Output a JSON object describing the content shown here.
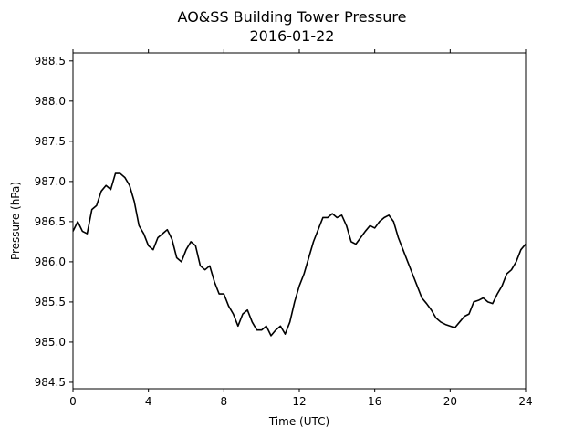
{
  "chart_data": {
    "type": "line",
    "title": "AO&SS Building Tower Pressure",
    "subtitle": "2016-01-22",
    "xlabel": "Time (UTC)",
    "ylabel": "Pressure (hPa)",
    "xlim": [
      0,
      24
    ],
    "ylim": [
      984.42,
      988.6
    ],
    "xticks": [
      0,
      4,
      8,
      12,
      16,
      20,
      24
    ],
    "yticks": [
      984.5,
      985.0,
      985.5,
      986.0,
      986.5,
      987.0,
      987.5,
      988.0,
      988.5
    ],
    "grid": false,
    "legend": "none",
    "line_color": "#000000",
    "series": [
      {
        "x": [
          0.0,
          0.25,
          0.5,
          0.75,
          1.0,
          1.25,
          1.5,
          1.75,
          2.0,
          2.25,
          2.5,
          2.75,
          3.0,
          3.25,
          3.5,
          3.75,
          4.0,
          4.25,
          4.5,
          4.75,
          5.0,
          5.25,
          5.5,
          5.75,
          6.0,
          6.25,
          6.5,
          6.75,
          7.0,
          7.25,
          7.5,
          7.75,
          8.0,
          8.25,
          8.5,
          8.75,
          9.0,
          9.25,
          9.5,
          9.75,
          10.0,
          10.25,
          10.5,
          10.75,
          11.0,
          11.25,
          11.5,
          11.75,
          12.0,
          12.25,
          12.5,
          12.75,
          13.0,
          13.25,
          13.5,
          13.75,
          14.0,
          14.25,
          14.5,
          14.75,
          15.0,
          15.25,
          15.5,
          15.75,
          16.0,
          16.25,
          16.5,
          16.75,
          17.0,
          17.25,
          17.5,
          17.75,
          18.0,
          18.25,
          18.5,
          18.75,
          19.0,
          19.25,
          19.5,
          19.75,
          20.0,
          20.25,
          20.5,
          20.75,
          21.0,
          21.25,
          21.5,
          21.75,
          22.0,
          22.25,
          22.5,
          22.75,
          23.0,
          23.25,
          23.5,
          23.75,
          24.0
        ],
        "values": [
          986.38,
          986.5,
          986.38,
          986.35,
          986.65,
          986.7,
          986.88,
          986.95,
          986.9,
          987.1,
          987.1,
          987.05,
          986.95,
          986.75,
          986.45,
          986.35,
          986.2,
          986.15,
          986.3,
          986.35,
          986.4,
          986.28,
          986.05,
          986.0,
          986.15,
          986.25,
          986.2,
          985.95,
          985.9,
          985.95,
          985.75,
          985.6,
          985.6,
          985.45,
          985.35,
          985.2,
          985.35,
          985.4,
          985.25,
          985.15,
          985.15,
          985.2,
          985.08,
          985.15,
          985.2,
          985.1,
          985.25,
          985.5,
          985.7,
          985.85,
          986.05,
          986.25,
          986.4,
          986.55,
          986.55,
          986.6,
          986.55,
          986.58,
          986.45,
          986.25,
          986.22,
          986.3,
          986.38,
          986.45,
          986.42,
          986.5,
          986.55,
          986.58,
          986.5,
          986.3,
          986.15,
          986.0,
          985.85,
          985.7,
          985.55,
          985.48,
          985.4,
          985.3,
          985.25,
          985.22,
          985.2,
          985.18,
          985.25,
          985.32,
          985.35,
          985.5,
          985.52,
          985.55,
          985.5,
          985.48,
          985.6,
          985.7,
          985.85,
          985.9,
          986.0,
          986.15,
          986.22
        ]
      }
    ]
  }
}
